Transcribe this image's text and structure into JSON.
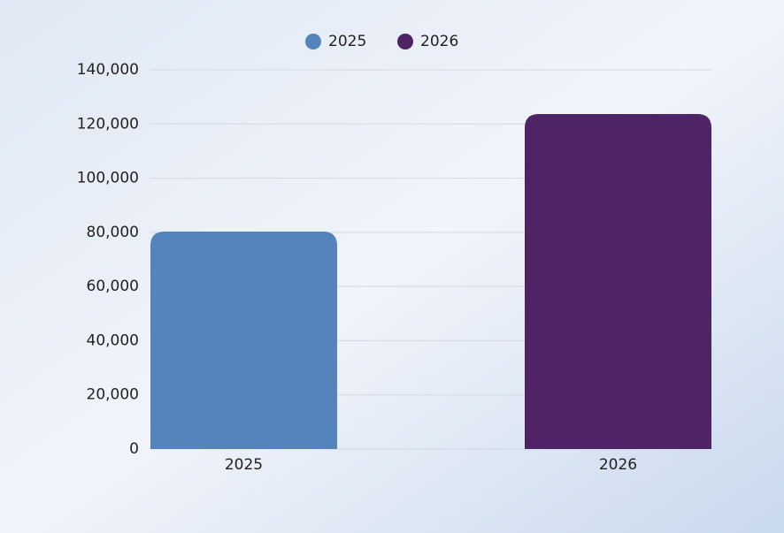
{
  "chart_data": {
    "type": "bar",
    "categories": [
      "2025",
      "2026"
    ],
    "series": [
      {
        "name": "2025",
        "color": "#5583bb",
        "values": [
          80300,
          null
        ]
      },
      {
        "name": "2026",
        "color": "#4e2466",
        "values": [
          null,
          123700
        ]
      }
    ],
    "ylim": [
      0,
      140000
    ],
    "yticks": [
      0,
      {
        "value": 20000,
        "label": "20,000"
      },
      {
        "value": 40000,
        "label": "40,000"
      },
      {
        "value": 60000,
        "label": "60,000"
      },
      {
        "value": 80000,
        "label": "80,000"
      },
      {
        "value": 100000,
        "label": "100,000"
      },
      {
        "value": 120000,
        "label": "120,000"
      },
      {
        "value": 140000,
        "label": "140,000"
      }
    ],
    "grid": true,
    "legend": "top"
  }
}
